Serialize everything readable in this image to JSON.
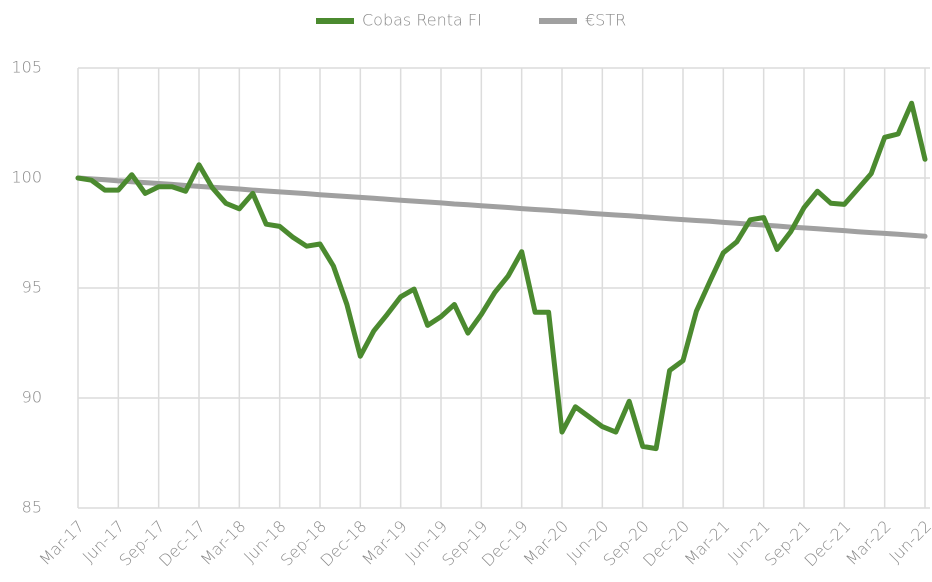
{
  "chart_data": {
    "type": "line",
    "categories": [
      "Mar-17",
      null,
      null,
      "Jun-17",
      null,
      null,
      "Sep-17",
      null,
      null,
      "Dec-17",
      null,
      null,
      "Mar-18",
      null,
      null,
      "Jun-18",
      null,
      null,
      "Sep-18",
      null,
      null,
      "Dec-18",
      null,
      null,
      "Mar-19",
      null,
      null,
      "Jun-19",
      null,
      null,
      "Sep-19",
      null,
      null,
      "Dec-19",
      null,
      null,
      "Mar-20",
      null,
      null,
      "Jun-20",
      null,
      null,
      "Sep-20",
      null,
      null,
      "Dec-20",
      null,
      null,
      "Mar-21",
      null,
      null,
      "Jun-21",
      null,
      null,
      "Sep-21",
      null,
      null,
      "Dec-21",
      null,
      null,
      "Mar-22",
      null,
      null,
      "Jun-22"
    ],
    "series": [
      {
        "name": "Cobas Renta FI",
        "color": "#4b8a2f",
        "values": [
          100.0,
          99.9,
          99.45,
          99.45,
          100.15,
          99.3,
          99.6,
          99.6,
          99.4,
          100.6,
          99.55,
          98.85,
          98.6,
          99.3,
          97.9,
          97.8,
          97.3,
          96.9,
          97.0,
          96.0,
          94.25,
          91.9,
          93.05,
          93.8,
          94.6,
          94.95,
          93.3,
          93.7,
          94.25,
          92.95,
          93.8,
          94.8,
          95.55,
          96.65,
          93.9,
          93.9,
          88.45,
          89.6,
          89.15,
          88.7,
          88.45,
          89.85,
          87.8,
          87.7,
          91.25,
          91.7,
          93.95,
          95.3,
          96.6,
          97.1,
          98.1,
          98.2,
          96.75,
          97.55,
          98.65,
          99.4,
          98.85,
          98.8,
          99.5,
          100.2,
          101.85,
          102.0,
          103.4,
          100.85
        ]
      },
      {
        "name": "€STR",
        "color": "#a0a0a0",
        "values": [
          100,
          99.96,
          99.92,
          99.87,
          99.83,
          99.79,
          99.75,
          99.71,
          99.66,
          99.62,
          99.58,
          99.54,
          99.5,
          99.45,
          99.41,
          99.37,
          99.33,
          99.29,
          99.24,
          99.2,
          99.16,
          99.12,
          99.08,
          99.03,
          98.99,
          98.95,
          98.91,
          98.87,
          98.82,
          98.78,
          98.74,
          98.7,
          98.66,
          98.61,
          98.57,
          98.53,
          98.49,
          98.45,
          98.4,
          98.36,
          98.32,
          98.28,
          98.24,
          98.19,
          98.15,
          98.11,
          98.07,
          98.03,
          97.98,
          97.94,
          97.9,
          97.86,
          97.82,
          97.77,
          97.73,
          97.69,
          97.65,
          97.61,
          97.56,
          97.52,
          97.48,
          97.44,
          97.4,
          97.35
        ]
      }
    ],
    "ylim": [
      85,
      105
    ],
    "yticks": [
      85,
      90,
      95,
      100,
      105
    ],
    "grid": true,
    "legend": "top"
  }
}
